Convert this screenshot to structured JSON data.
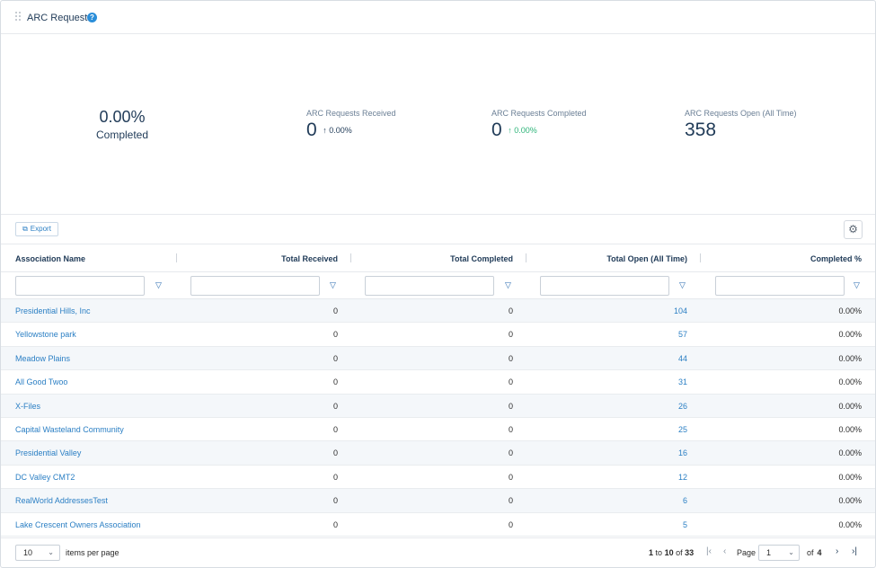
{
  "header": {
    "title": "ARC Requests",
    "help_icon": "?"
  },
  "summary": {
    "completed_pct": "0.00%",
    "completed_label": "Completed",
    "received": {
      "label": "ARC Requests Received",
      "value": "0",
      "delta": "0.00%"
    },
    "completed": {
      "label": "ARC Requests Completed",
      "value": "0",
      "delta": "0.00%"
    },
    "open": {
      "label": "ARC Requests Open (All Time)",
      "value": "358"
    }
  },
  "toolbar": {
    "export_label": "Export",
    "export_icon": "external-link-icon",
    "settings_icon": "gear-icon"
  },
  "table": {
    "columns": [
      "Association Name",
      "Total Received",
      "Total Completed",
      "Total Open (All Time)",
      "Completed %"
    ],
    "rows": [
      [
        "Presidential Hills, Inc",
        "0",
        "0",
        "104",
        "0.00%"
      ],
      [
        "Yellowstone park",
        "0",
        "0",
        "57",
        "0.00%"
      ],
      [
        "Meadow Plains",
        "0",
        "0",
        "44",
        "0.00%"
      ],
      [
        "All Good Twoo",
        "0",
        "0",
        "31",
        "0.00%"
      ],
      [
        "X-Files",
        "0",
        "0",
        "26",
        "0.00%"
      ],
      [
        "Capital Wasteland Community",
        "0",
        "0",
        "25",
        "0.00%"
      ],
      [
        "Presidential Valley",
        "0",
        "0",
        "16",
        "0.00%"
      ],
      [
        "DC Valley CMT2",
        "0",
        "0",
        "12",
        "0.00%"
      ],
      [
        "RealWorld AddressesTest",
        "0",
        "0",
        "6",
        "0.00%"
      ],
      [
        "Lake Crescent Owners Association",
        "0",
        "0",
        "5",
        "0.00%"
      ]
    ]
  },
  "pager": {
    "page_size": "10",
    "items_per_page_label": "items per page",
    "range_start": "1",
    "range_to": "to",
    "range_end": "10",
    "range_of": "of",
    "total": "33",
    "page_label": "Page",
    "current_page": "1",
    "of_label": "of",
    "total_pages": "4"
  },
  "colors": {
    "accent": "#2b7fc4",
    "title": "#1f3a57",
    "positive": "#2fb57a",
    "stripe": "#f4f7fa"
  }
}
